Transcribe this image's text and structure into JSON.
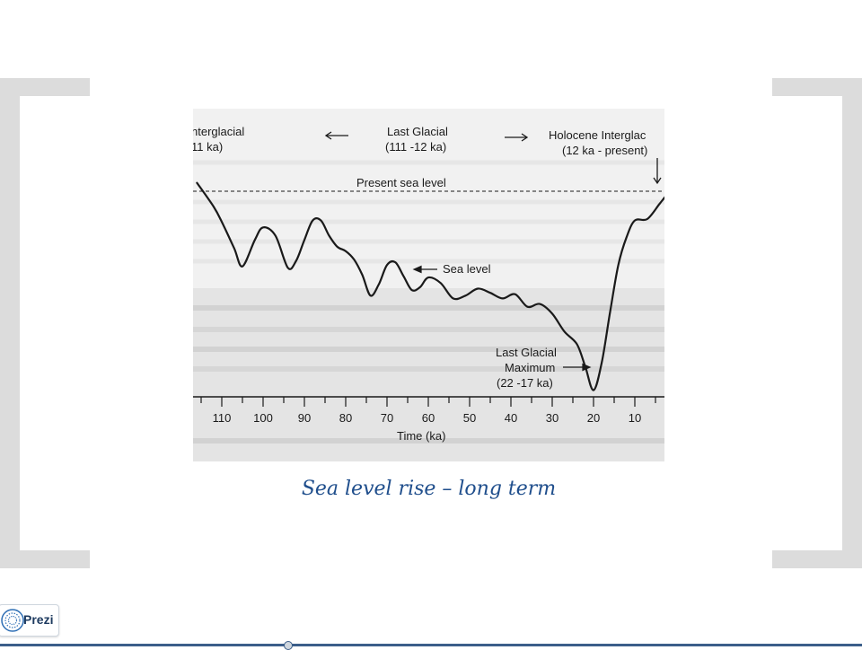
{
  "slide": {
    "caption": "Sea level rise – long term"
  },
  "figure": {
    "header_left_line1": "nterglacial",
    "header_left_line2": "11 ka)",
    "header_mid_line1": "Last Glacial",
    "header_mid_line2": "(111 -12 ka)",
    "header_right_line1": "Holocene Interglac",
    "header_right_line2": "(12 ka - present)",
    "present_sea_level_label": "Present sea level",
    "sea_level_label": "Sea level",
    "lgm_line1": "Last Glacial",
    "lgm_line2": "Maximum",
    "lgm_line3": "(22 -17 ka)",
    "xlabel": "Time (ka)"
  },
  "chart_data": {
    "type": "line",
    "title": "",
    "xlabel": "Time (ka)",
    "ylabel": "",
    "x_reversed": true,
    "xlim": [
      116,
      0
    ],
    "ylim": [
      -140,
      20
    ],
    "x_ticks": [
      110,
      100,
      90,
      80,
      70,
      60,
      50,
      40,
      30,
      20,
      10
    ],
    "reference_line": {
      "label": "Present sea level",
      "y": 0
    },
    "series": [
      {
        "name": "Sea level",
        "x": [
          116,
          112,
          110,
          107,
          105,
          102,
          100,
          97,
          94,
          92,
          90,
          88,
          86,
          84,
          82,
          80,
          78,
          76,
          74,
          72,
          70,
          68,
          66,
          64,
          62,
          60,
          57,
          54,
          51,
          48,
          45,
          42,
          39,
          36,
          33,
          30,
          27,
          24,
          22,
          20,
          18,
          16,
          14,
          12,
          10,
          7,
          4,
          2,
          0
        ],
        "y": [
          6,
          -11,
          -22,
          -41,
          -54,
          -35,
          -26,
          -32,
          -55,
          -50,
          -35,
          -21,
          -21,
          -32,
          -40,
          -43,
          -49,
          -60,
          -75,
          -67,
          -53,
          -51,
          -61,
          -71,
          -69,
          -62,
          -66,
          -77,
          -75,
          -70,
          -73,
          -77,
          -74,
          -83,
          -81,
          -88,
          -101,
          -110,
          -126,
          -143,
          -123,
          -87,
          -53,
          -33,
          -21,
          -20,
          -9,
          -2,
          2
        ]
      }
    ]
  },
  "prezi": {
    "label": "Prezi"
  }
}
